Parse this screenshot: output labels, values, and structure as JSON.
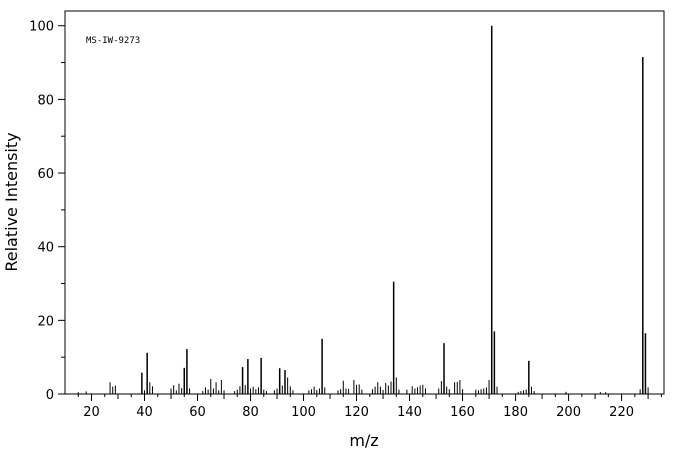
{
  "chart_data": {
    "type": "bar",
    "title": "",
    "annotation": "MS-IW-9273",
    "xlabel": "m/z",
    "ylabel": "Relative Intensity",
    "xlim": [
      10,
      236
    ],
    "ylim": [
      0,
      104
    ],
    "grid": false,
    "legend": "none",
    "x_ticks": [
      20,
      40,
      60,
      80,
      100,
      120,
      140,
      160,
      180,
      200,
      220
    ],
    "y_ticks": [
      0,
      20,
      40,
      60,
      80,
      100
    ],
    "x_tick_labels": [
      "20",
      "40",
      "60",
      "80",
      "100",
      "120",
      "140",
      "160",
      "180",
      "200",
      "220"
    ],
    "y_tick_labels": [
      "0",
      "20",
      "40",
      "60",
      "80",
      "100"
    ],
    "colors": {
      "bars": "#000000",
      "axes": "#000000",
      "background": "#ffffff"
    },
    "peaks": [
      {
        "mz": 15,
        "intensity": 0.5
      },
      {
        "mz": 18,
        "intensity": 0.7
      },
      {
        "mz": 27,
        "intensity": 3.2
      },
      {
        "mz": 28,
        "intensity": 2.0
      },
      {
        "mz": 29,
        "intensity": 2.3
      },
      {
        "mz": 39,
        "intensity": 5.8
      },
      {
        "mz": 40,
        "intensity": 1.0
      },
      {
        "mz": 41,
        "intensity": 11.2
      },
      {
        "mz": 42,
        "intensity": 3.2
      },
      {
        "mz": 43,
        "intensity": 2.1
      },
      {
        "mz": 50,
        "intensity": 1.5
      },
      {
        "mz": 51,
        "intensity": 2.4
      },
      {
        "mz": 52,
        "intensity": 1.0
      },
      {
        "mz": 53,
        "intensity": 2.8
      },
      {
        "mz": 54,
        "intensity": 1.6
      },
      {
        "mz": 55,
        "intensity": 7.1
      },
      {
        "mz": 56,
        "intensity": 12.2
      },
      {
        "mz": 57,
        "intensity": 1.5
      },
      {
        "mz": 62,
        "intensity": 0.8
      },
      {
        "mz": 63,
        "intensity": 1.8
      },
      {
        "mz": 64,
        "intensity": 1.2
      },
      {
        "mz": 65,
        "intensity": 4.1
      },
      {
        "mz": 66,
        "intensity": 1.5
      },
      {
        "mz": 67,
        "intensity": 3.2
      },
      {
        "mz": 68,
        "intensity": 1.0
      },
      {
        "mz": 69,
        "intensity": 3.8
      },
      {
        "mz": 70,
        "intensity": 1.0
      },
      {
        "mz": 74,
        "intensity": 0.8
      },
      {
        "mz": 75,
        "intensity": 1.2
      },
      {
        "mz": 76,
        "intensity": 2.1
      },
      {
        "mz": 77,
        "intensity": 7.3
      },
      {
        "mz": 78,
        "intensity": 2.4
      },
      {
        "mz": 79,
        "intensity": 9.5
      },
      {
        "mz": 80,
        "intensity": 1.5
      },
      {
        "mz": 81,
        "intensity": 2.0
      },
      {
        "mz": 82,
        "intensity": 1.3
      },
      {
        "mz": 83,
        "intensity": 1.8
      },
      {
        "mz": 84,
        "intensity": 9.8
      },
      {
        "mz": 85,
        "intensity": 1.2
      },
      {
        "mz": 86,
        "intensity": 0.8
      },
      {
        "mz": 89,
        "intensity": 1.0
      },
      {
        "mz": 90,
        "intensity": 1.5
      },
      {
        "mz": 91,
        "intensity": 7.0
      },
      {
        "mz": 92,
        "intensity": 2.3
      },
      {
        "mz": 93,
        "intensity": 6.5
      },
      {
        "mz": 94,
        "intensity": 4.5
      },
      {
        "mz": 95,
        "intensity": 2.1
      },
      {
        "mz": 96,
        "intensity": 1.0
      },
      {
        "mz": 102,
        "intensity": 1.0
      },
      {
        "mz": 103,
        "intensity": 1.3
      },
      {
        "mz": 104,
        "intensity": 2.0
      },
      {
        "mz": 105,
        "intensity": 1.1
      },
      {
        "mz": 106,
        "intensity": 1.5
      },
      {
        "mz": 107,
        "intensity": 15.0
      },
      {
        "mz": 108,
        "intensity": 1.8
      },
      {
        "mz": 113,
        "intensity": 1.0
      },
      {
        "mz": 114,
        "intensity": 1.3
      },
      {
        "mz": 115,
        "intensity": 3.6
      },
      {
        "mz": 116,
        "intensity": 1.5
      },
      {
        "mz": 117,
        "intensity": 1.4
      },
      {
        "mz": 119,
        "intensity": 3.8
      },
      {
        "mz": 120,
        "intensity": 2.5
      },
      {
        "mz": 121,
        "intensity": 2.6
      },
      {
        "mz": 122,
        "intensity": 1.2
      },
      {
        "mz": 126,
        "intensity": 1.3
      },
      {
        "mz": 127,
        "intensity": 2.0
      },
      {
        "mz": 128,
        "intensity": 3.2
      },
      {
        "mz": 129,
        "intensity": 2.0
      },
      {
        "mz": 130,
        "intensity": 1.1
      },
      {
        "mz": 131,
        "intensity": 3.0
      },
      {
        "mz": 132,
        "intensity": 2.3
      },
      {
        "mz": 133,
        "intensity": 3.4
      },
      {
        "mz": 134,
        "intensity": 30.5
      },
      {
        "mz": 135,
        "intensity": 4.5
      },
      {
        "mz": 136,
        "intensity": 1.2
      },
      {
        "mz": 139,
        "intensity": 1.2
      },
      {
        "mz": 141,
        "intensity": 2.1
      },
      {
        "mz": 142,
        "intensity": 1.5
      },
      {
        "mz": 143,
        "intensity": 1.8
      },
      {
        "mz": 144,
        "intensity": 2.3
      },
      {
        "mz": 145,
        "intensity": 2.5
      },
      {
        "mz": 146,
        "intensity": 1.5
      },
      {
        "mz": 151,
        "intensity": 1.5
      },
      {
        "mz": 152,
        "intensity": 3.5
      },
      {
        "mz": 153,
        "intensity": 13.8
      },
      {
        "mz": 154,
        "intensity": 2.0
      },
      {
        "mz": 155,
        "intensity": 1.3
      },
      {
        "mz": 157,
        "intensity": 3.2
      },
      {
        "mz": 158,
        "intensity": 3.3
      },
      {
        "mz": 159,
        "intensity": 3.8
      },
      {
        "mz": 160,
        "intensity": 1.3
      },
      {
        "mz": 165,
        "intensity": 1.2
      },
      {
        "mz": 166,
        "intensity": 1.0
      },
      {
        "mz": 167,
        "intensity": 1.3
      },
      {
        "mz": 168,
        "intensity": 1.5
      },
      {
        "mz": 169,
        "intensity": 1.8
      },
      {
        "mz": 170,
        "intensity": 3.8
      },
      {
        "mz": 171,
        "intensity": 100.0
      },
      {
        "mz": 172,
        "intensity": 17.0
      },
      {
        "mz": 173,
        "intensity": 2.0
      },
      {
        "mz": 181,
        "intensity": 0.6
      },
      {
        "mz": 182,
        "intensity": 0.8
      },
      {
        "mz": 183,
        "intensity": 1.0
      },
      {
        "mz": 184,
        "intensity": 1.2
      },
      {
        "mz": 185,
        "intensity": 9.0
      },
      {
        "mz": 186,
        "intensity": 2.0
      },
      {
        "mz": 187,
        "intensity": 0.8
      },
      {
        "mz": 199,
        "intensity": 0.6
      },
      {
        "mz": 212,
        "intensity": 0.5
      },
      {
        "mz": 214,
        "intensity": 0.5
      },
      {
        "mz": 227,
        "intensity": 1.3
      },
      {
        "mz": 228,
        "intensity": 91.5
      },
      {
        "mz": 229,
        "intensity": 16.5
      },
      {
        "mz": 230,
        "intensity": 1.8
      }
    ]
  }
}
